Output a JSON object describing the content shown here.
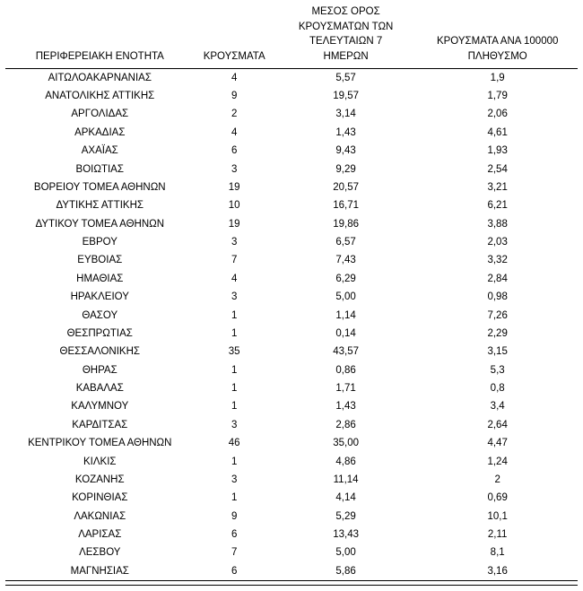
{
  "page": {
    "background": "#ffffff",
    "text_color": "#000000"
  },
  "chart_data": {
    "type": "table",
    "columns": [
      {
        "id": "region",
        "label": "ΠΕΡΙΦΕΡΕΙΑΚΗ ΕΝΟΤΗΤΑ"
      },
      {
        "id": "cases",
        "label": "ΚΡΟΥΣΜΑΤΑ"
      },
      {
        "id": "avg7day",
        "label": "ΜΕΣΟΣ ΟΡΟΣ\nΚΡΟΥΣΜΑΤΩΝ ΤΩΝ\nΤΕΛΕΥΤΑΙΩΝ 7\nΗΜΕΡΩΝ"
      },
      {
        "id": "per100k",
        "label": "ΚΡΟΥΣΜΑΤΑ ΑΝΑ 100000\nΠΛΗΘΥΣΜΟ"
      }
    ],
    "rows": [
      [
        "ΑΙΤΩΛΟΑΚΑΡΝΑΝΙΑΣ",
        "4",
        "5,57",
        "1,9"
      ],
      [
        "ΑΝΑΤΟΛΙΚΗΣ ΑΤΤΙΚΗΣ",
        "9",
        "19,57",
        "1,79"
      ],
      [
        "ΑΡΓΟΛΙΔΑΣ",
        "2",
        "3,14",
        "2,06"
      ],
      [
        "ΑΡΚΑΔΙΑΣ",
        "4",
        "1,43",
        "4,61"
      ],
      [
        "ΑΧΑΪΑΣ",
        "6",
        "9,43",
        "1,93"
      ],
      [
        "ΒΟΙΩΤΙΑΣ",
        "3",
        "9,29",
        "2,54"
      ],
      [
        "ΒΟΡΕΙΟΥ ΤΟΜΕΑ ΑΘΗΝΩΝ",
        "19",
        "20,57",
        "3,21"
      ],
      [
        "ΔΥΤΙΚΗΣ ΑΤΤΙΚΗΣ",
        "10",
        "16,71",
        "6,21"
      ],
      [
        "ΔΥΤΙΚΟΥ ΤΟΜΕΑ ΑΘΗΝΩΝ",
        "19",
        "19,86",
        "3,88"
      ],
      [
        "ΕΒΡΟΥ",
        "3",
        "6,57",
        "2,03"
      ],
      [
        "ΕΥΒΟΙΑΣ",
        "7",
        "7,43",
        "3,32"
      ],
      [
        "ΗΜΑΘΙΑΣ",
        "4",
        "6,29",
        "2,84"
      ],
      [
        "ΗΡΑΚΛΕΙΟΥ",
        "3",
        "5,00",
        "0,98"
      ],
      [
        "ΘΑΣΟΥ",
        "1",
        "1,14",
        "7,26"
      ],
      [
        "ΘΕΣΠΡΩΤΙΑΣ",
        "1",
        "0,14",
        "2,29"
      ],
      [
        "ΘΕΣΣΑΛΟΝΙΚΗΣ",
        "35",
        "43,57",
        "3,15"
      ],
      [
        "ΘΗΡΑΣ",
        "1",
        "0,86",
        "5,3"
      ],
      [
        "ΚΑΒΑΛΑΣ",
        "1",
        "1,71",
        "0,8"
      ],
      [
        "ΚΑΛΥΜΝΟΥ",
        "1",
        "1,43",
        "3,4"
      ],
      [
        "ΚΑΡΔΙΤΣΑΣ",
        "3",
        "2,86",
        "2,64"
      ],
      [
        "ΚΕΝΤΡΙΚΟΥ ΤΟΜΕΑ ΑΘΗΝΩΝ",
        "46",
        "35,00",
        "4,47"
      ],
      [
        "ΚΙΛΚΙΣ",
        "1",
        "4,86",
        "1,24"
      ],
      [
        "ΚΟΖΑΝΗΣ",
        "3",
        "11,14",
        "2"
      ],
      [
        "ΚΟΡΙΝΘΙΑΣ",
        "1",
        "4,14",
        "0,69"
      ],
      [
        "ΛΑΚΩΝΙΑΣ",
        "9",
        "5,29",
        "10,1"
      ],
      [
        "ΛΑΡΙΣΑΣ",
        "6",
        "13,43",
        "2,11"
      ],
      [
        "ΛΕΣΒΟΥ",
        "7",
        "5,00",
        "8,1"
      ],
      [
        "ΜΑΓΝΗΣΙΑΣ",
        "6",
        "5,86",
        "3,16"
      ]
    ]
  }
}
